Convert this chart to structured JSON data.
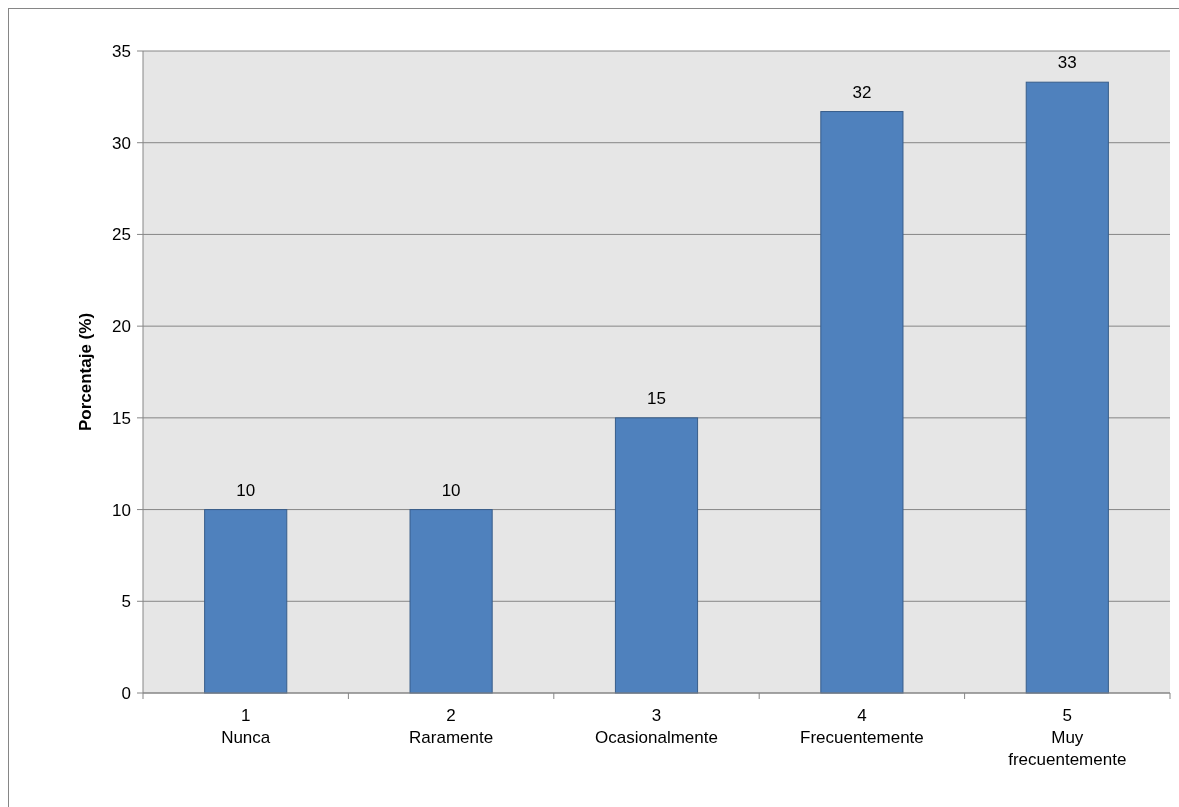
{
  "chart_data": {
    "type": "bar",
    "ylabel": "Porcentaje (%)",
    "categories": [
      "1\nNunca",
      "2\nRaramente",
      "3\nOcasionalmente",
      "4\nFrecuentemente",
      "5\nMuy frecuentemente"
    ],
    "values": [
      10,
      10,
      15,
      31.7,
      33.3
    ],
    "value_labels": [
      "10",
      "10",
      "15",
      "32",
      "33"
    ],
    "color": "#4f81bd",
    "ylim": [
      0,
      35
    ],
    "yticks": [
      0,
      5,
      10,
      15,
      20,
      25,
      30,
      35
    ],
    "grid": "y"
  }
}
